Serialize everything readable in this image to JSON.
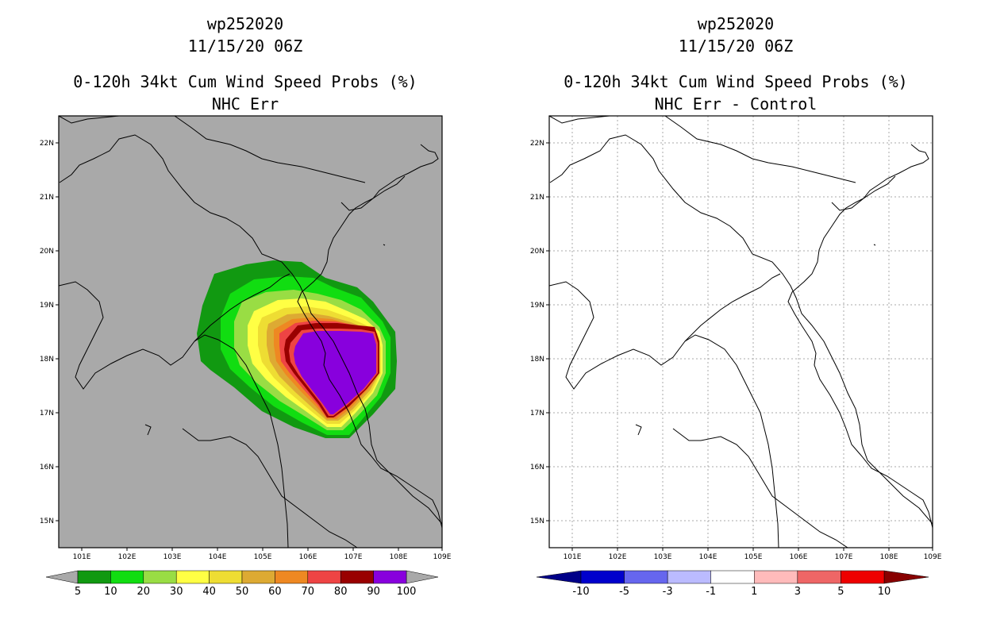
{
  "panels": [
    {
      "id": "left",
      "storm_id": "wp252020",
      "datetime": "11/15/20 06Z",
      "product": "0-120h 34kt Cum Wind Speed Probs (%)",
      "variant": "NHC Err",
      "map_background": "#a9a9a9",
      "colorbar": {
        "levels": [
          "5",
          "10",
          "20",
          "30",
          "40",
          "50",
          "60",
          "70",
          "80",
          "90",
          "100"
        ],
        "colors": [
          "#119911",
          "#11dd11",
          "#99dd44",
          "#ffff44",
          "#eedd33",
          "#ddaa33",
          "#ee8822",
          "#ee4444",
          "#990000",
          "#8800dd"
        ],
        "extend_color": "#a9a9a9"
      }
    },
    {
      "id": "right",
      "storm_id": "wp252020",
      "datetime": "11/15/20 06Z",
      "product": "0-120h 34kt Cum Wind Speed Probs (%)",
      "variant": "NHC Err - Control",
      "map_background": "#ffffff",
      "colorbar": {
        "levels": [
          "-10",
          "-5",
          "-3",
          "-1",
          "1",
          "3",
          "5",
          "10"
        ],
        "colors": [
          "#0000cc",
          "#6666ee",
          "#bbbbff",
          "#ffffff",
          "#ffbbbb",
          "#ee6666",
          "#ee0000"
        ],
        "extend_left": "#000088",
        "extend_right": "#880000"
      }
    }
  ],
  "axes": {
    "lon_labels": [
      "101E",
      "102E",
      "103E",
      "104E",
      "105E",
      "106E",
      "107E",
      "108E",
      "109E"
    ],
    "lat_labels": [
      "22N",
      "21N",
      "20N",
      "19N",
      "18N",
      "17N",
      "16N",
      "15N"
    ],
    "lon_range": [
      100.5,
      109.0
    ],
    "lat_range": [
      14.5,
      22.5
    ]
  },
  "prob_field": {
    "center": [
      106.9,
      17.9
    ],
    "contour_levels": [
      5,
      10,
      20,
      30,
      40,
      50,
      60,
      70,
      80,
      90
    ],
    "description_level_100": "core"
  }
}
